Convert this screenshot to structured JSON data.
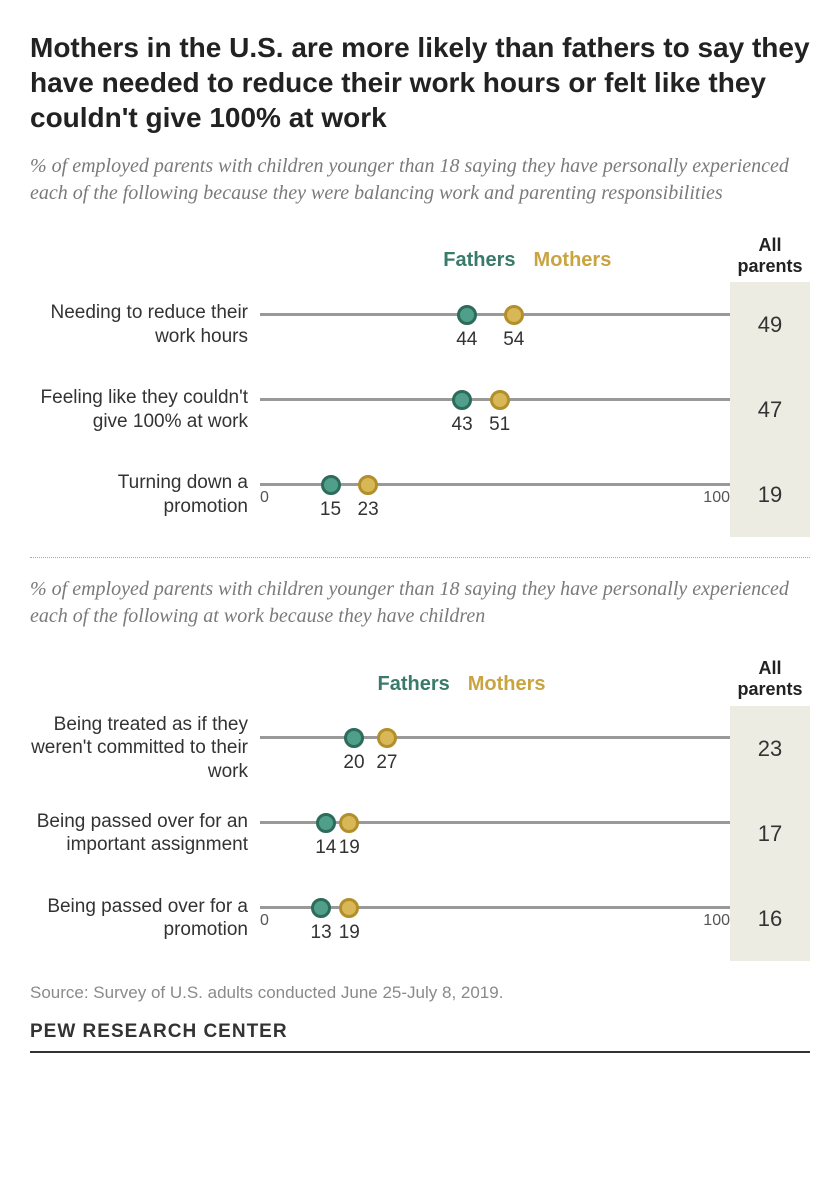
{
  "title": "Mothers in the U.S. are more likely than fathers to say they have needed to reduce their work hours or felt like they couldn't give 100% at work",
  "colors": {
    "fathers_fill": "#4f9f8a",
    "fathers_border": "#2d6b5a",
    "mothers_fill": "#d7b756",
    "mothers_border": "#b28f2a",
    "track": "#999999",
    "all_bg": "#edece2"
  },
  "legend": {
    "fathers": "Fathers",
    "mothers": "Mothers"
  },
  "axis": {
    "min": 0,
    "max": 100,
    "min_label": "0",
    "max_label": "100"
  },
  "all_header": "All parents",
  "section1": {
    "subtitle": "% of employed parents with children younger than 18 saying they have personally experienced each of the following because they were balancing work and parenting responsibilities",
    "legend_left_pct": 39,
    "rows": [
      {
        "label": "Needing to reduce their work hours",
        "fathers": 44,
        "mothers": 54,
        "all": 49,
        "show_axis": false
      },
      {
        "label": "Feeling like they couldn't give 100% at work",
        "fathers": 43,
        "mothers": 51,
        "all": 47,
        "show_axis": false
      },
      {
        "label": "Turning down a promotion",
        "fathers": 15,
        "mothers": 23,
        "all": 19,
        "show_axis": true
      }
    ]
  },
  "section2": {
    "subtitle": "% of employed parents with children younger than 18 saying they have personally experienced each of the following at work because they have children",
    "legend_left_pct": 25,
    "rows": [
      {
        "label": "Being treated as if they weren't committed to their work",
        "fathers": 20,
        "mothers": 27,
        "all": 23,
        "show_axis": false
      },
      {
        "label": "Being passed over for an important assignment",
        "fathers": 14,
        "mothers": 19,
        "all": 17,
        "show_axis": false
      },
      {
        "label": "Being passed over for a promotion",
        "fathers": 13,
        "mothers": 19,
        "all": 16,
        "show_axis": true
      }
    ]
  },
  "source": "Source: Survey of U.S. adults conducted June 25-July 8, 2019.",
  "footer": "PEW RESEARCH CENTER"
}
